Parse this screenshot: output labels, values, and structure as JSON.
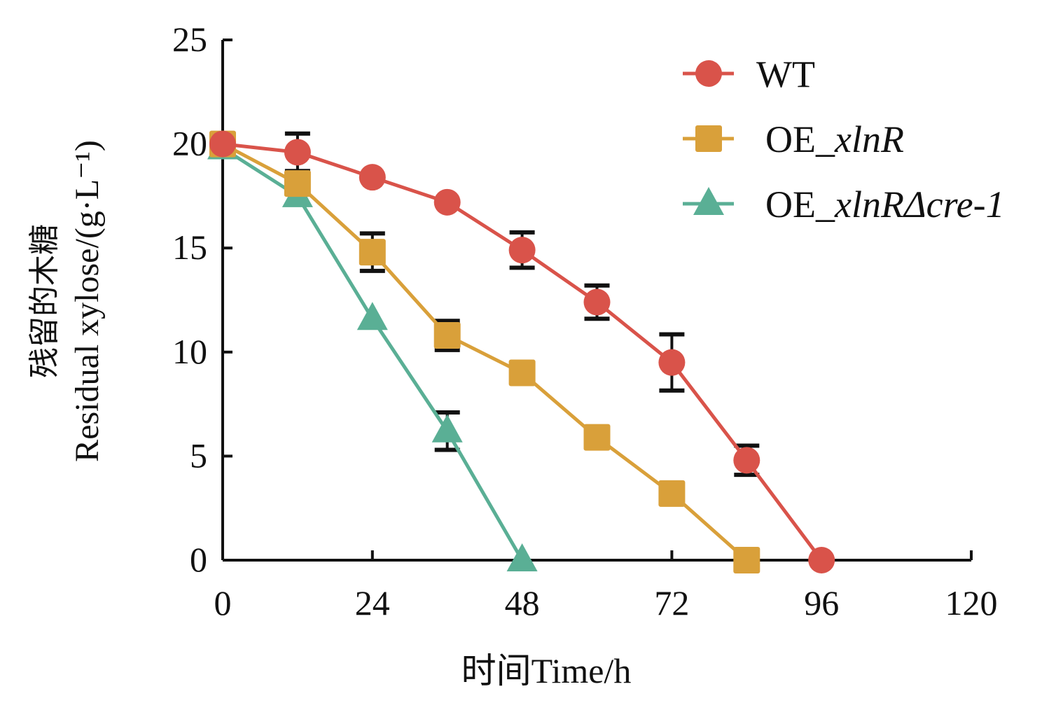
{
  "chart_data": {
    "type": "line",
    "title": "",
    "xlabel": "时间Time/h",
    "ylabel_zh": "残留的木糖",
    "ylabel": "Residual xylose/(g·L⁻¹)",
    "xlim": [
      0,
      120
    ],
    "ylim": [
      0,
      25
    ],
    "xticks": [
      0,
      24,
      48,
      72,
      96,
      120
    ],
    "yticks": [
      0,
      5,
      10,
      15,
      20,
      25
    ],
    "grid": false,
    "legend_position": "top-right",
    "series": [
      {
        "name": "WT",
        "legend_prefix": "",
        "legend_italic": "WT",
        "marker": "circle",
        "color": "#d9534a",
        "x": [
          0,
          12,
          24,
          36,
          48,
          60,
          72,
          84,
          96
        ],
        "y": [
          20,
          19.6,
          18.4,
          17.2,
          14.9,
          12.4,
          9.5,
          4.8,
          0
        ],
        "error": [
          0,
          0.9,
          0,
          0,
          0.85,
          0.8,
          1.35,
          0.7,
          0
        ]
      },
      {
        "name": "OE_xlnR",
        "legend_prefix": "OE_",
        "legend_italic": "xlnR",
        "marker": "square",
        "color": "#d9a03a",
        "x": [
          0,
          12,
          24,
          36,
          48,
          60,
          72,
          84
        ],
        "y": [
          20,
          18.1,
          14.8,
          10.8,
          9.0,
          5.9,
          3.2,
          0
        ],
        "error": [
          0,
          0.3,
          0.9,
          0.7,
          0,
          0,
          0,
          0
        ]
      },
      {
        "name": "OE_xlnRΔcre-1",
        "legend_prefix": "OE_",
        "legend_italic": "xlnRΔcre-1",
        "marker": "triangle",
        "color": "#5aaf95",
        "x": [
          0,
          12,
          24,
          36,
          48
        ],
        "y": [
          19.8,
          17.5,
          11.6,
          6.2,
          0
        ],
        "error": [
          0,
          0,
          0,
          0.9,
          0
        ]
      }
    ]
  }
}
